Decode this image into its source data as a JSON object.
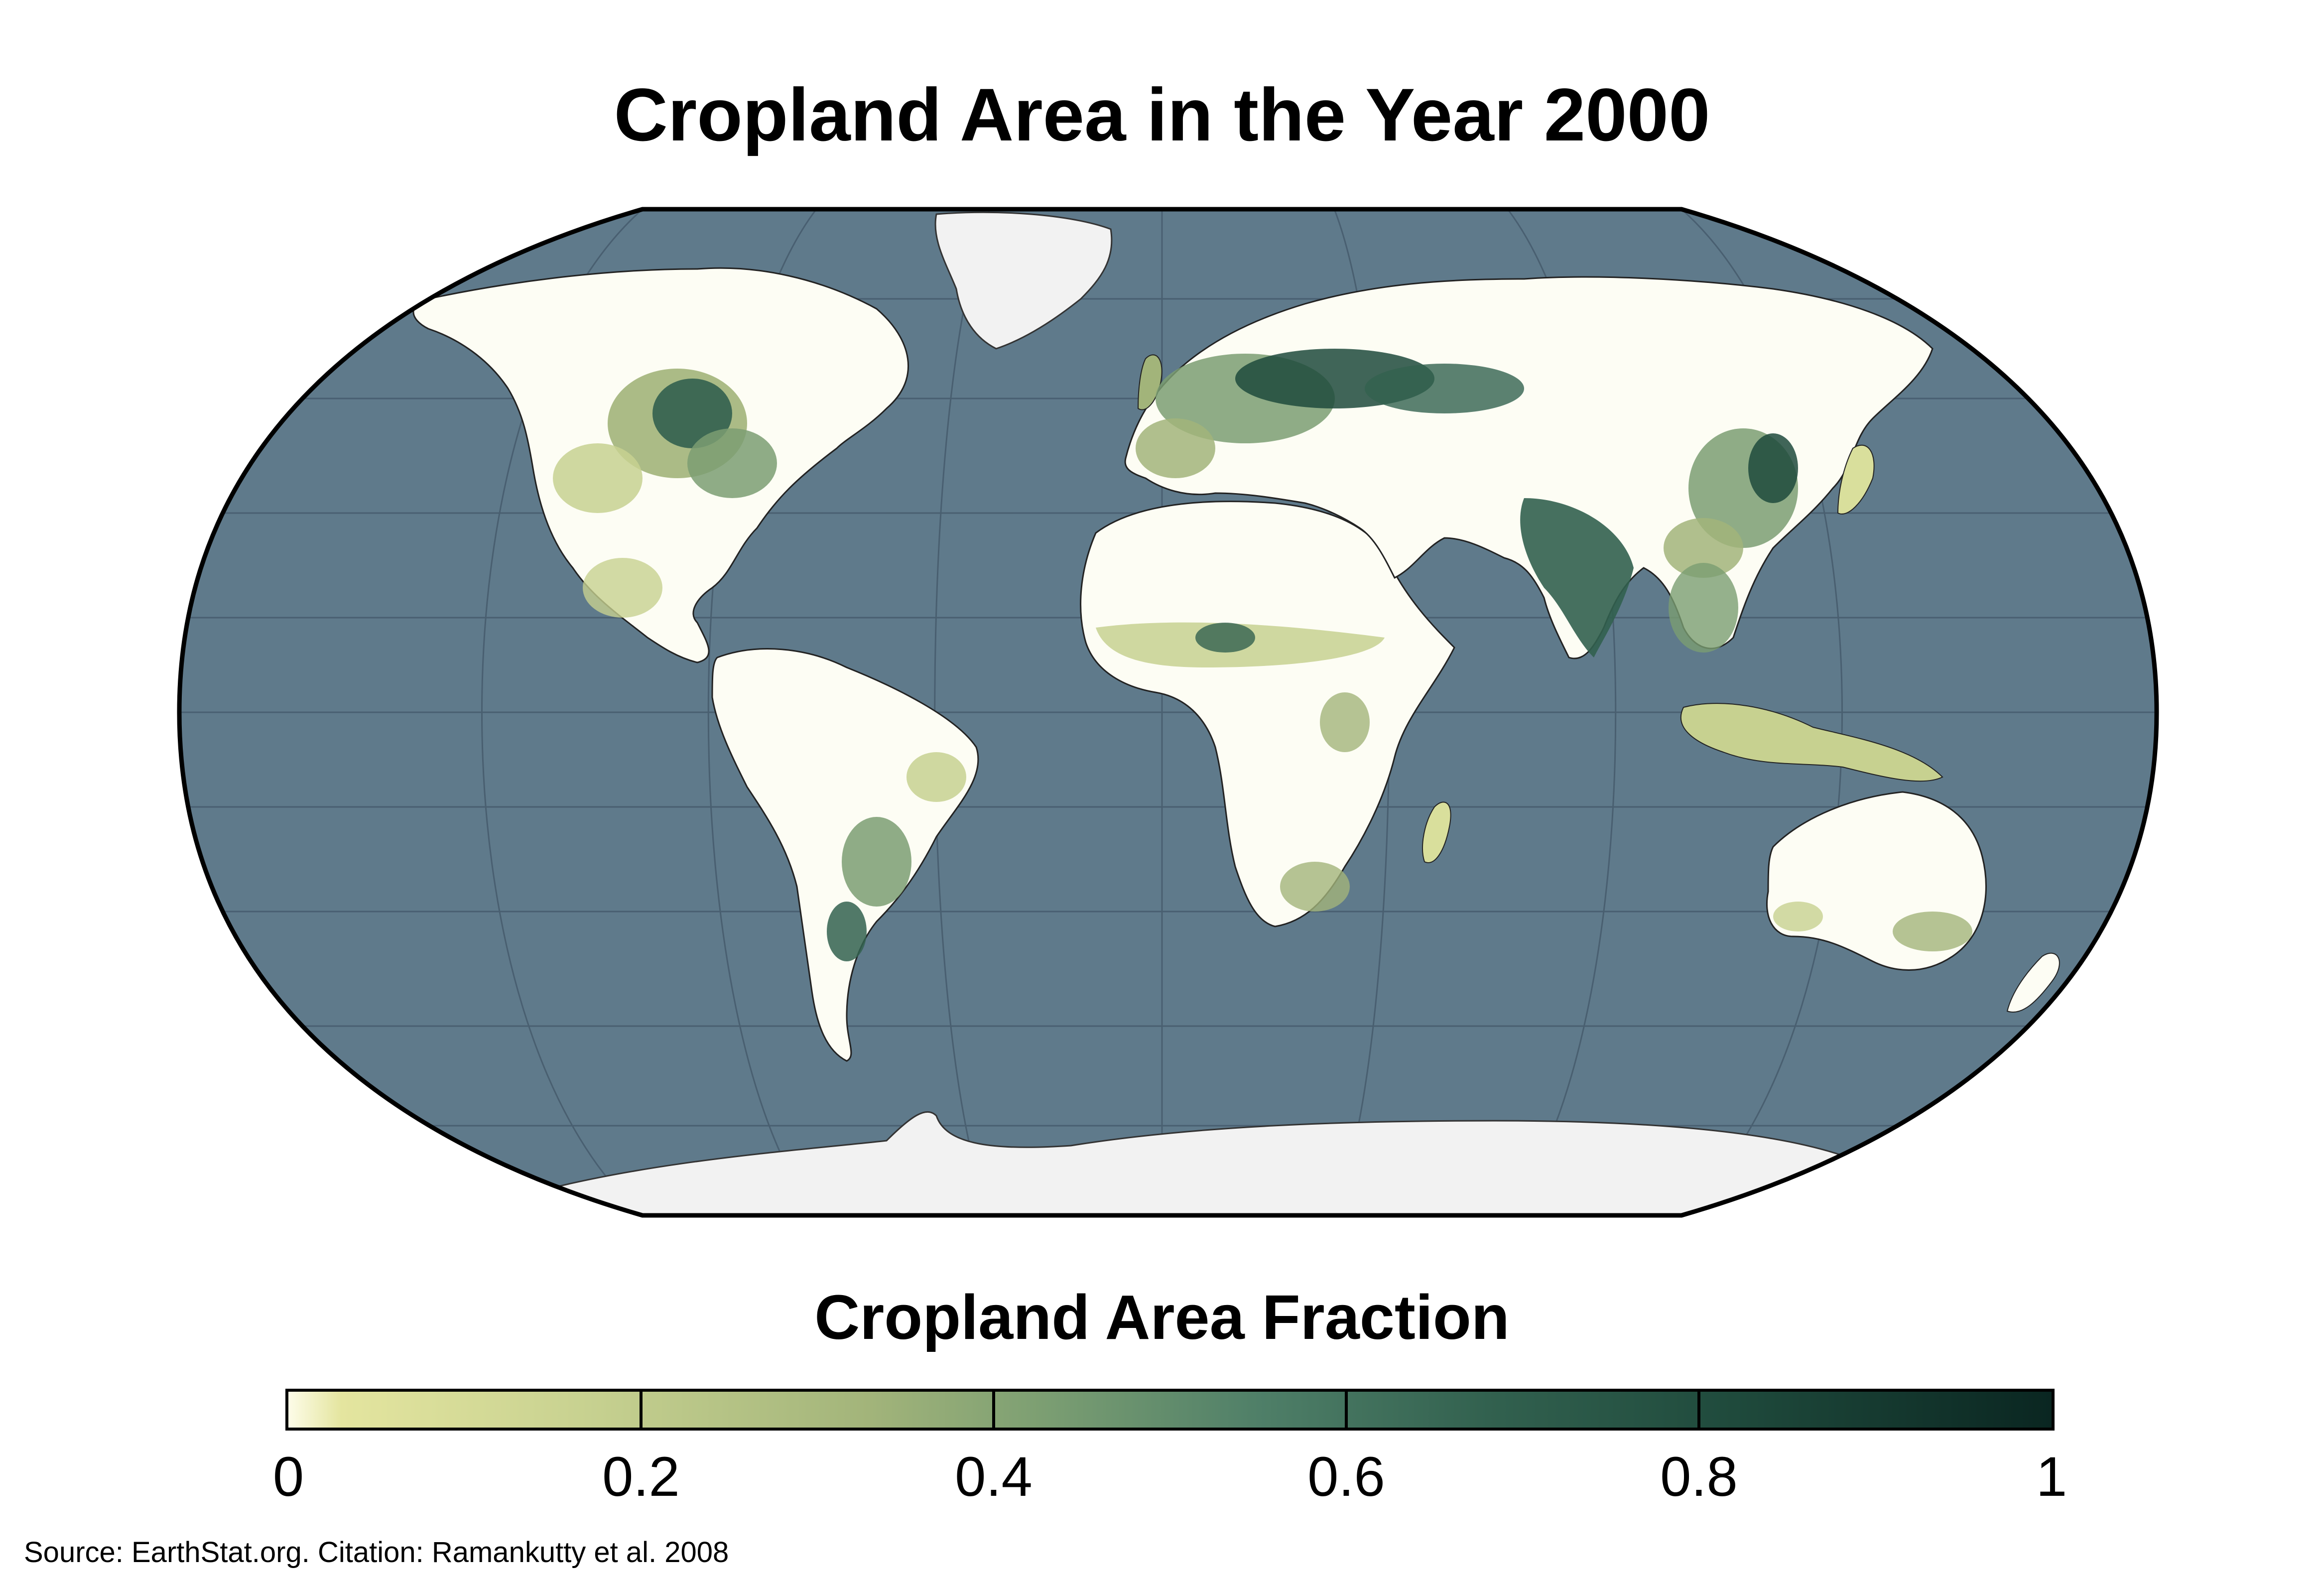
{
  "title": "Cropland Area in the Year 2000",
  "legend": {
    "title": "Cropland Area Fraction",
    "min": 0,
    "max": 1,
    "ticks": [
      {
        "value": 0,
        "label": "0"
      },
      {
        "value": 0.2,
        "label": "0.2"
      },
      {
        "value": 0.4,
        "label": "0.4"
      },
      {
        "value": 0.6,
        "label": "0.6"
      },
      {
        "value": 0.8,
        "label": "0.8"
      },
      {
        "value": 1,
        "label": "1"
      }
    ]
  },
  "source": "Source: EarthStat.org. Citation: Ramankutty et al. 2008",
  "colors": {
    "ocean": "#5f7a8b",
    "land": "#fdfdf4",
    "ice": "#f2f2f2",
    "border": "#000000",
    "graticule": "#44596a",
    "scale_low": "#fdfce8",
    "scale_mid": "#7b9e72",
    "scale_high": "#0a2621"
  },
  "map": {
    "projection": "Robinson",
    "layers": [
      "ocean",
      "land",
      "ice-sheets",
      "cropland-fraction",
      "country-borders",
      "graticule"
    ]
  }
}
